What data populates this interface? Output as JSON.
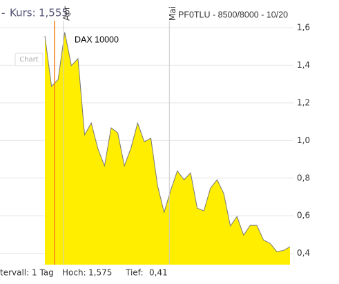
{
  "header": {
    "dash": "-",
    "kurs_label": "Kurs:",
    "kurs_value": "1,555"
  },
  "button": "Chart",
  "footer": {
    "interval": "tervall: 1 Tag",
    "high_label": "Hoch:",
    "high_value": "1,575",
    "low_label": "Tief:",
    "low_value": "0,41"
  },
  "chart_data": {
    "type": "area",
    "title": "PF0TLU - 8500/8000 - 10/20",
    "annotation": "DAX 10000",
    "categories": [
      null,
      null,
      null,
      "Apr",
      null,
      null,
      null,
      null,
      null,
      null,
      null,
      null,
      null,
      null,
      null,
      null,
      null,
      null,
      null,
      "Mai",
      null,
      null,
      null,
      null,
      null,
      null,
      null,
      null,
      null,
      null,
      null,
      null,
      null,
      null,
      null,
      null,
      null,
      null
    ],
    "series": [
      {
        "color": "#ffee00",
        "values": [
          1.556,
          1.288,
          1.324,
          1.575,
          1.398,
          1.435,
          1.03,
          1.093,
          0.957,
          0.865,
          1.067,
          1.041,
          0.865,
          0.96,
          1.093,
          0.993,
          1.012,
          0.762,
          0.618,
          0.736,
          0.839,
          0.791,
          0.828,
          0.64,
          0.626,
          0.747,
          0.791,
          0.718,
          0.545,
          0.596,
          0.497,
          0.549,
          0.549,
          0.471,
          0.453,
          0.41,
          0.415,
          0.435
        ]
      }
    ],
    "ylim": [
      0.34,
      1.71
    ],
    "yticks": [
      {
        "value": 0.4,
        "label": "0,4"
      },
      {
        "value": 0.6,
        "label": "0,6"
      },
      {
        "value": 0.8,
        "label": "0,8"
      },
      {
        "value": 1.0,
        "label": "1,0"
      },
      {
        "value": 1.2,
        "label": "1,2"
      },
      {
        "value": 1.4,
        "label": "1,4"
      },
      {
        "value": 1.6,
        "label": "1,6"
      }
    ],
    "grid": true
  }
}
